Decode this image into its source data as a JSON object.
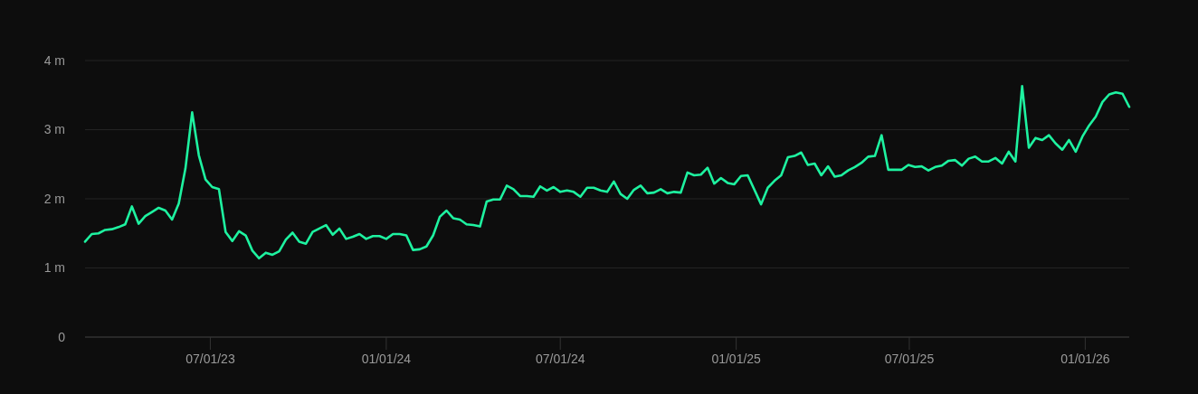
{
  "chart_data": {
    "type": "line",
    "x": [
      "2023-02-20",
      "2023-02-27",
      "2023-03-06",
      "2023-03-13",
      "2023-03-20",
      "2023-03-27",
      "2023-04-03",
      "2023-04-10",
      "2023-04-17",
      "2023-04-24",
      "2023-05-01",
      "2023-05-08",
      "2023-05-15",
      "2023-05-22",
      "2023-05-29",
      "2023-06-05",
      "2023-06-12",
      "2023-06-19",
      "2023-06-26",
      "2023-07-03",
      "2023-07-10",
      "2023-07-17",
      "2023-07-24",
      "2023-07-31",
      "2023-08-07",
      "2023-08-14",
      "2023-08-21",
      "2023-08-28",
      "2023-09-04",
      "2023-09-11",
      "2023-09-18",
      "2023-09-25",
      "2023-10-02",
      "2023-10-09",
      "2023-10-16",
      "2023-10-23",
      "2023-10-30",
      "2023-11-06",
      "2023-11-13",
      "2023-11-20",
      "2023-11-27",
      "2023-12-04",
      "2023-12-11",
      "2023-12-18",
      "2023-12-25",
      "2024-01-01",
      "2024-01-08",
      "2024-01-15",
      "2024-01-22",
      "2024-01-29",
      "2024-02-05",
      "2024-02-12",
      "2024-02-19",
      "2024-02-26",
      "2024-03-04",
      "2024-03-11",
      "2024-03-18",
      "2024-03-25",
      "2024-04-01",
      "2024-04-08",
      "2024-04-15",
      "2024-04-22",
      "2024-04-29",
      "2024-05-06",
      "2024-05-13",
      "2024-05-20",
      "2024-05-27",
      "2024-06-03",
      "2024-06-10",
      "2024-06-17",
      "2024-06-24",
      "2024-07-01",
      "2024-07-08",
      "2024-07-15",
      "2024-07-22",
      "2024-07-29",
      "2024-08-05",
      "2024-08-12",
      "2024-08-19",
      "2024-08-26",
      "2024-09-02",
      "2024-09-09",
      "2024-09-16",
      "2024-09-23",
      "2024-09-30",
      "2024-10-07",
      "2024-10-14",
      "2024-10-21",
      "2024-10-28",
      "2024-11-04",
      "2024-11-11",
      "2024-11-18",
      "2024-11-25",
      "2024-12-02",
      "2024-12-09",
      "2024-12-16",
      "2024-12-23",
      "2024-12-30",
      "2025-01-06",
      "2025-01-13",
      "2025-01-20",
      "2025-01-27",
      "2025-02-03",
      "2025-02-10",
      "2025-02-17",
      "2025-02-24",
      "2025-03-03",
      "2025-03-10",
      "2025-03-17",
      "2025-03-24",
      "2025-03-31",
      "2025-04-07",
      "2025-04-14",
      "2025-04-21",
      "2025-04-28",
      "2025-05-05",
      "2025-05-12",
      "2025-05-19",
      "2025-05-26",
      "2025-06-02",
      "2025-06-09",
      "2025-06-16",
      "2025-06-23",
      "2025-06-30",
      "2025-07-07",
      "2025-07-14",
      "2025-07-21",
      "2025-07-28",
      "2025-08-04",
      "2025-08-11",
      "2025-08-18",
      "2025-08-25",
      "2025-09-01",
      "2025-09-08",
      "2025-09-15",
      "2025-09-22",
      "2025-09-29",
      "2025-10-06",
      "2025-10-13",
      "2025-10-20",
      "2025-10-27",
      "2025-11-03",
      "2025-11-10",
      "2025-11-17",
      "2025-11-24",
      "2025-12-01",
      "2025-12-08",
      "2025-12-15",
      "2025-12-22",
      "2025-12-29",
      "2026-01-05",
      "2026-01-12",
      "2026-01-19",
      "2026-01-26",
      "2026-02-02",
      "2026-02-09",
      "2026-02-16"
    ],
    "series": [
      {
        "color": "#1ef2a0",
        "values": [
          1.38,
          1.49,
          1.5,
          1.55,
          1.56,
          1.59,
          1.63,
          1.89,
          1.64,
          1.75,
          1.81,
          1.87,
          1.83,
          1.7,
          1.93,
          2.44,
          3.25,
          2.63,
          2.28,
          2.17,
          2.14,
          1.52,
          1.39,
          1.53,
          1.47,
          1.25,
          1.14,
          1.22,
          1.19,
          1.24,
          1.41,
          1.51,
          1.38,
          1.35,
          1.52,
          1.57,
          1.62,
          1.48,
          1.57,
          1.42,
          1.45,
          1.49,
          1.42,
          1.46,
          1.46,
          1.42,
          1.49,
          1.49,
          1.47,
          1.26,
          1.27,
          1.31,
          1.47,
          1.74,
          1.83,
          1.72,
          1.7,
          1.63,
          1.62,
          1.6,
          1.96,
          1.99,
          1.99,
          2.19,
          2.14,
          2.04,
          2.04,
          2.03,
          2.18,
          2.12,
          2.17,
          2.1,
          2.12,
          2.1,
          2.03,
          2.16,
          2.16,
          2.12,
          2.1,
          2.25,
          2.07,
          2.0,
          2.13,
          2.19,
          2.08,
          2.09,
          2.14,
          2.08,
          2.1,
          2.09,
          2.38,
          2.34,
          2.35,
          2.45,
          2.22,
          2.3,
          2.23,
          2.21,
          2.33,
          2.34,
          2.13,
          1.92,
          2.16,
          2.26,
          2.34,
          2.6,
          2.62,
          2.67,
          2.49,
          2.51,
          2.34,
          2.47,
          2.32,
          2.34,
          2.41,
          2.46,
          2.52,
          2.61,
          2.62,
          2.92,
          2.42,
          2.42,
          2.42,
          2.49,
          2.46,
          2.47,
          2.41,
          2.46,
          2.48,
          2.55,
          2.56,
          2.48,
          2.58,
          2.61,
          2.54,
          2.54,
          2.59,
          2.51,
          2.68,
          2.54,
          3.63,
          2.74,
          2.88,
          2.85,
          2.92,
          2.8,
          2.71,
          2.85,
          2.68,
          2.9,
          3.06,
          3.19,
          3.4,
          3.51,
          3.54,
          3.52,
          3.33
        ]
      }
    ],
    "xlim": [
      "2023-02-20",
      "2026-02-16"
    ],
    "xticks": [
      {
        "value": "2023-07-01",
        "label": "07/01/23"
      },
      {
        "value": "2024-01-01",
        "label": "01/01/24"
      },
      {
        "value": "2024-07-01",
        "label": "07/01/24"
      },
      {
        "value": "2025-01-01",
        "label": "01/01/25"
      },
      {
        "value": "2025-07-01",
        "label": "07/01/25"
      },
      {
        "value": "2026-01-01",
        "label": "01/01/26"
      }
    ],
    "ylim": [
      0,
      4
    ],
    "yticks": [
      0,
      {
        "value": 1,
        "label": "1 m"
      },
      {
        "value": 2,
        "label": "2 m"
      },
      {
        "value": 3,
        "label": "3 m"
      },
      {
        "value": 4,
        "label": "4 m"
      }
    ],
    "grid": "y",
    "marker": "none",
    "line_style": "solid"
  }
}
